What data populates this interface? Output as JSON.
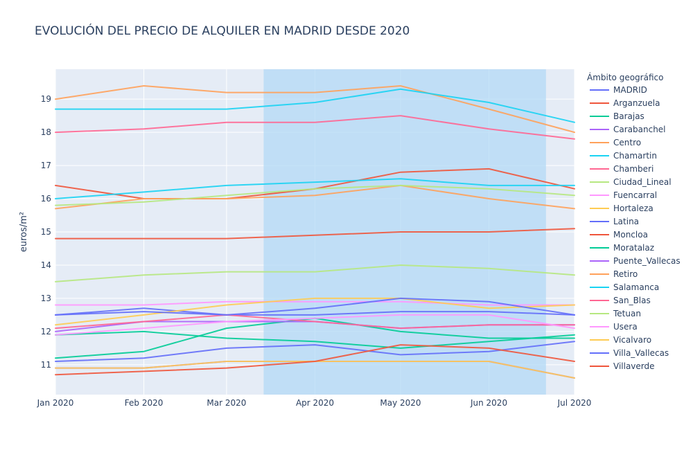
{
  "chart_data": {
    "type": "line",
    "title": "EVOLUCIÓN DEL PRECIO DE ALQUILER EN MADRID DESDE 2020",
    "xlabel": "",
    "ylabel": "euros/m²",
    "x": [
      "2020-01-01",
      "2020-02-01",
      "2020-03-01",
      "2020-04-01",
      "2020-05-01",
      "2020-06-01",
      "2020-07-01"
    ],
    "x_tick_labels": [
      "Jan 2020",
      "Feb 2020",
      "Mar 2020",
      "Apr 2020",
      "May 2020",
      "Jun 2020",
      "Jul 2020"
    ],
    "y_ticks": [
      "11",
      "12",
      "13",
      "14",
      "15",
      "16",
      "17",
      "18",
      "19"
    ],
    "xlim": [
      "2020-01-01",
      "2020-07-01"
    ],
    "ylim": [
      10.1,
      19.9
    ],
    "highlight_range": [
      "2020-03-14",
      "2020-06-21"
    ],
    "highlight_color": "#b3d9f5",
    "legend_title": "Ámbito geográfico",
    "legend_position": "right",
    "grid": true,
    "series": [
      {
        "name": "MADRID",
        "color": "#636efa",
        "values": [
          12.5,
          12.7,
          12.5,
          12.5,
          12.6,
          12.6,
          12.5
        ]
      },
      {
        "name": "Arganzuela",
        "color": "#EF553B",
        "values": [
          14.8,
          14.8,
          14.8,
          14.9,
          15.0,
          15.0,
          15.1
        ]
      },
      {
        "name": "Barajas",
        "color": "#00cc96",
        "values": [
          11.2,
          11.4,
          12.1,
          12.4,
          12.0,
          11.8,
          11.8
        ]
      },
      {
        "name": "Carabanchel",
        "color": "#ab63fa",
        "values": [
          12.0,
          12.3,
          12.3,
          12.3,
          12.1,
          12.2,
          12.2
        ]
      },
      {
        "name": "Centro",
        "color": "#FFA15A",
        "values": [
          19.0,
          19.4,
          19.2,
          19.2,
          19.4,
          18.7,
          18.0
        ]
      },
      {
        "name": "Chamartin",
        "color": "#19d3f3",
        "values": [
          18.7,
          18.7,
          18.7,
          18.9,
          19.3,
          18.9,
          18.3
        ]
      },
      {
        "name": "Chamberi",
        "color": "#FF6692",
        "values": [
          18.0,
          18.1,
          18.3,
          18.3,
          18.5,
          18.1,
          17.8
        ]
      },
      {
        "name": "Ciudad_Lineal",
        "color": "#B6E880",
        "values": [
          13.5,
          13.7,
          13.8,
          13.8,
          14.0,
          13.9,
          13.7
        ]
      },
      {
        "name": "Fuencarral",
        "color": "#FF97FF",
        "values": [
          12.8,
          12.8,
          12.9,
          12.9,
          12.9,
          12.8,
          12.8
        ]
      },
      {
        "name": "Hortaleza",
        "color": "#FECB52",
        "values": [
          12.2,
          12.5,
          12.8,
          13.0,
          13.0,
          12.7,
          12.8
        ]
      },
      {
        "name": "Latina",
        "color": "#636efa",
        "values": [
          11.1,
          11.2,
          11.5,
          11.6,
          11.3,
          11.4,
          11.7
        ]
      },
      {
        "name": "Moncloa",
        "color": "#EF553B",
        "values": [
          16.4,
          16.0,
          16.0,
          16.3,
          16.8,
          16.9,
          16.3
        ]
      },
      {
        "name": "Moratalaz",
        "color": "#00cc96",
        "values": [
          11.9,
          12.0,
          11.8,
          11.7,
          11.5,
          11.7,
          11.9
        ]
      },
      {
        "name": "Puente_Vallecas",
        "color": "#ab63fa",
        "values": [
          10.9,
          10.9,
          11.1,
          11.1,
          11.1,
          11.1,
          10.6
        ]
      },
      {
        "name": "Retiro",
        "color": "#FFA15A",
        "values": [
          15.7,
          16.0,
          16.0,
          16.1,
          16.4,
          16.0,
          15.7
        ]
      },
      {
        "name": "Salamanca",
        "color": "#19d3f3",
        "values": [
          16.0,
          16.2,
          16.4,
          16.5,
          16.6,
          16.4,
          16.4
        ]
      },
      {
        "name": "San_Blas",
        "color": "#FF6692",
        "values": [
          12.1,
          12.3,
          12.5,
          12.3,
          12.1,
          12.2,
          12.2
        ]
      },
      {
        "name": "Tetuan",
        "color": "#B6E880",
        "values": [
          15.8,
          15.9,
          16.1,
          16.3,
          16.4,
          16.3,
          16.1
        ]
      },
      {
        "name": "Usera",
        "color": "#FF97FF",
        "values": [
          11.9,
          12.1,
          12.3,
          12.4,
          12.5,
          12.5,
          12.1
        ]
      },
      {
        "name": "Vicalvaro",
        "color": "#FECB52",
        "values": [
          10.9,
          10.9,
          11.1,
          11.1,
          11.1,
          11.1,
          10.6
        ]
      },
      {
        "name": "Villa_Vallecas",
        "color": "#636efa",
        "values": [
          12.5,
          12.6,
          12.5,
          12.7,
          13.0,
          12.9,
          12.5
        ]
      },
      {
        "name": "Villaverde",
        "color": "#EF553B",
        "values": [
          10.7,
          10.8,
          10.9,
          11.1,
          11.6,
          11.5,
          11.1
        ]
      }
    ]
  }
}
